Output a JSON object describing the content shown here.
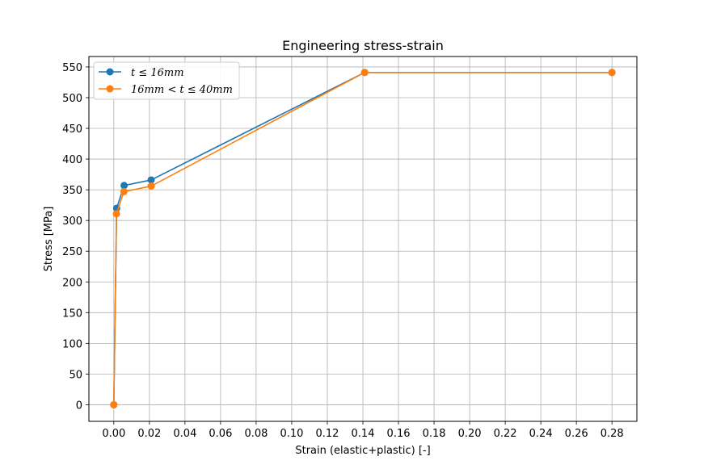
{
  "chart_data": {
    "type": "line",
    "title": "Engineering stress-strain",
    "xlabel": "Strain (elastic+plastic) [-]",
    "ylabel": "Stress [MPa]",
    "xlim": [
      -0.014,
      0.294
    ],
    "ylim": [
      -27,
      567
    ],
    "xticks": [
      0.0,
      0.02,
      0.04,
      0.06,
      0.08,
      0.1,
      0.12,
      0.14,
      0.16,
      0.18,
      0.2,
      0.22,
      0.24,
      0.26,
      0.28
    ],
    "xtick_labels": [
      "0.00",
      "0.02",
      "0.04",
      "0.06",
      "0.08",
      "0.10",
      "0.12",
      "0.14",
      "0.16",
      "0.18",
      "0.20",
      "0.22",
      "0.24",
      "0.26",
      "0.28"
    ],
    "yticks": [
      0,
      50,
      100,
      150,
      200,
      250,
      300,
      350,
      400,
      450,
      500,
      550
    ],
    "ytick_labels": [
      "0",
      "50",
      "100",
      "150",
      "200",
      "250",
      "300",
      "350",
      "400",
      "450",
      "500",
      "550"
    ],
    "grid": true,
    "legend_position": "top-left",
    "series": [
      {
        "name": "t ≤ 16mm",
        "color": "#1f77b4",
        "x": [
          0.0,
          0.0016,
          0.0058,
          0.021,
          0.141,
          0.28
        ],
        "y": [
          0,
          320,
          357,
          366,
          541,
          541
        ]
      },
      {
        "name": "16mm < t ≤ 40mm",
        "color": "#ff7f0e",
        "x": [
          0.0,
          0.0015,
          0.0057,
          0.021,
          0.141,
          0.28
        ],
        "y": [
          0,
          311,
          347,
          356,
          541,
          541
        ]
      }
    ]
  }
}
